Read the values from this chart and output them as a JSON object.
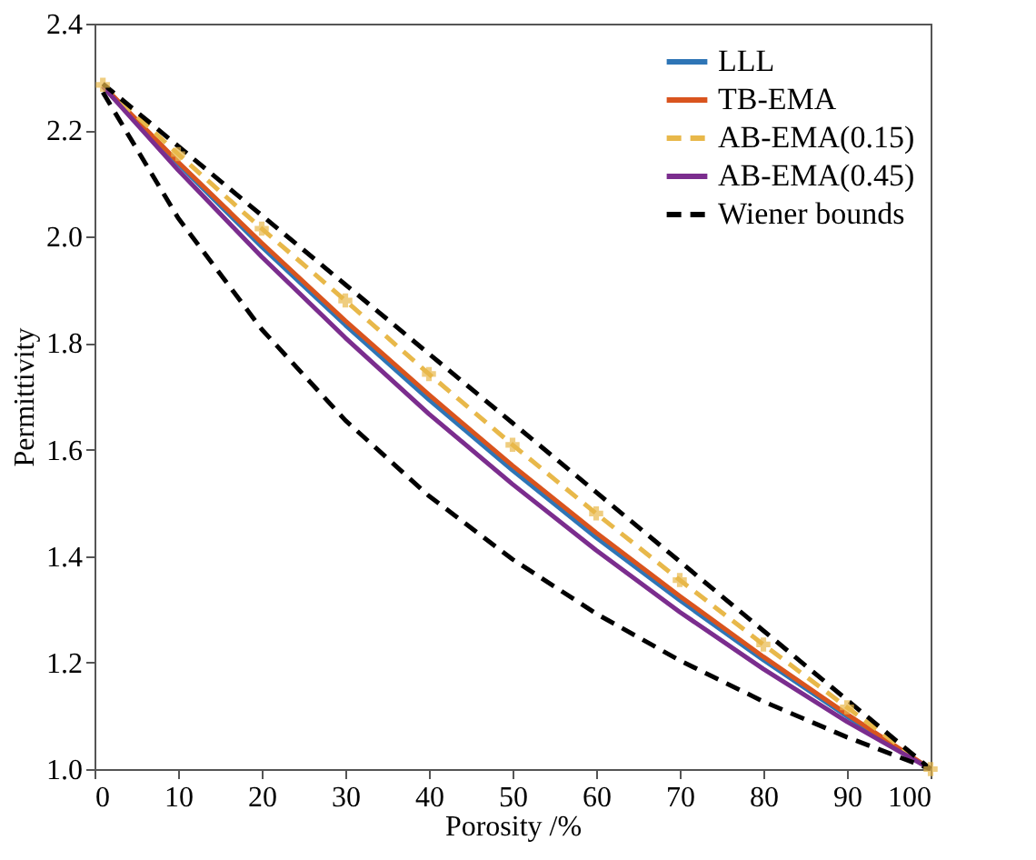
{
  "chart_data": {
    "type": "line",
    "xlabel": "Porosity /%",
    "ylabel": "Permittivity",
    "x": [
      1,
      10,
      20,
      30,
      40,
      50,
      60,
      70,
      80,
      90,
      100
    ],
    "xlim": [
      0,
      100
    ],
    "xticks": [
      0,
      10,
      20,
      30,
      40,
      50,
      60,
      70,
      80,
      90,
      100
    ],
    "ylim": [
      1.0,
      2.4
    ],
    "yticks": [
      {
        "value": 1.0,
        "label": "1.0"
      },
      1.2,
      1.4,
      1.6,
      1.8,
      {
        "value": 2.0,
        "label": "2.0"
      },
      2.2,
      2.4
    ],
    "grid": false,
    "legend": "top right",
    "series": [
      {
        "name": "LLL",
        "color": "#2e75b6",
        "line_style": "solid",
        "marker": "none",
        "values": [
          2.283,
          2.137,
          1.981,
          1.834,
          1.694,
          1.561,
          1.435,
          1.317,
          1.205,
          1.099,
          1.0
        ]
      },
      {
        "name": "TB-EMA",
        "color": "#d9541e",
        "line_style": "solid",
        "marker": "none",
        "values": [
          2.284,
          2.14,
          1.988,
          1.842,
          1.703,
          1.57,
          1.444,
          1.325,
          1.211,
          1.103,
          1.0
        ]
      },
      {
        "name": "AB-EMA(0.15)",
        "color": "#e8b84a",
        "line_style": "dashed",
        "marker": "cross",
        "values": [
          2.285,
          2.155,
          2.015,
          1.88,
          1.742,
          1.609,
          1.48,
          1.355,
          1.234,
          1.116,
          1.0
        ]
      },
      {
        "name": "AB-EMA(0.45)",
        "color": "#7b2d8e",
        "line_style": "solid",
        "marker": "none",
        "values": [
          2.282,
          2.125,
          1.962,
          1.81,
          1.667,
          1.535,
          1.411,
          1.295,
          1.188,
          1.089,
          1.0
        ]
      },
      {
        "name": "Wiener bounds",
        "color": "#000000",
        "line_style": "dashed",
        "marker": "none",
        "values": [
          2.287,
          2.17,
          2.04,
          1.91,
          1.78,
          1.65,
          1.52,
          1.39,
          1.26,
          1.13,
          1.0
        ]
      },
      {
        "color": "#000000",
        "line_style": "dashed",
        "marker": "none",
        "values": [
          2.271,
          2.035,
          1.826,
          1.655,
          1.513,
          1.394,
          1.292,
          1.204,
          1.127,
          1.06,
          1.0
        ]
      }
    ]
  }
}
